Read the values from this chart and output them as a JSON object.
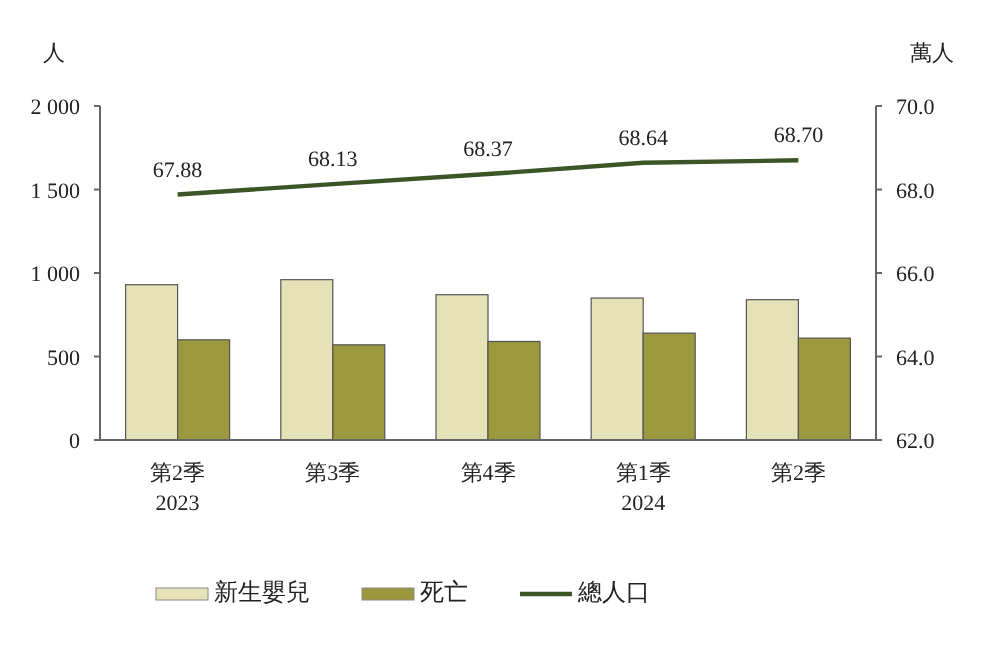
{
  "chart_data": {
    "type": "bar",
    "categories": [
      "第2季\n2023",
      "第3季",
      "第4季",
      "第1季\n2024",
      "第2季"
    ],
    "ylabel": "人",
    "y2label": "萬人",
    "ylim": [
      0,
      2000
    ],
    "yticks": [
      0,
      {
        "value": 500,
        "label": "500"
      },
      {
        "value": 1000,
        "label": "1 000"
      },
      {
        "value": 1500,
        "label": "1 500"
      },
      {
        "value": 2000,
        "label": "2 000"
      }
    ],
    "y2lim": [
      62.0,
      70.0
    ],
    "y2ticks": [
      {
        "value": 62,
        "label": "62.0"
      },
      {
        "value": 64,
        "label": "64.0"
      },
      {
        "value": 66,
        "label": "66.0"
      },
      {
        "value": 68,
        "label": "68.0"
      },
      {
        "value": 70,
        "label": "70.0"
      }
    ],
    "series": [
      {
        "name": "新生嬰兒",
        "color": "#e6e2b8",
        "values": [
          930,
          960,
          870,
          850,
          840
        ]
      },
      {
        "name": "死亡",
        "color": "#9b983e",
        "values": [
          600,
          570,
          590,
          640,
          610
        ]
      },
      {
        "name": "總人口",
        "type": "line",
        "axis": "y2",
        "color": "#3b5527",
        "values": [
          67.88,
          68.13,
          68.37,
          68.64,
          68.7
        ],
        "value_labels": [
          "67.88",
          "68.13",
          "68.37",
          "68.64",
          "68.70"
        ]
      }
    ],
    "legend": "bottom",
    "grid": false
  }
}
